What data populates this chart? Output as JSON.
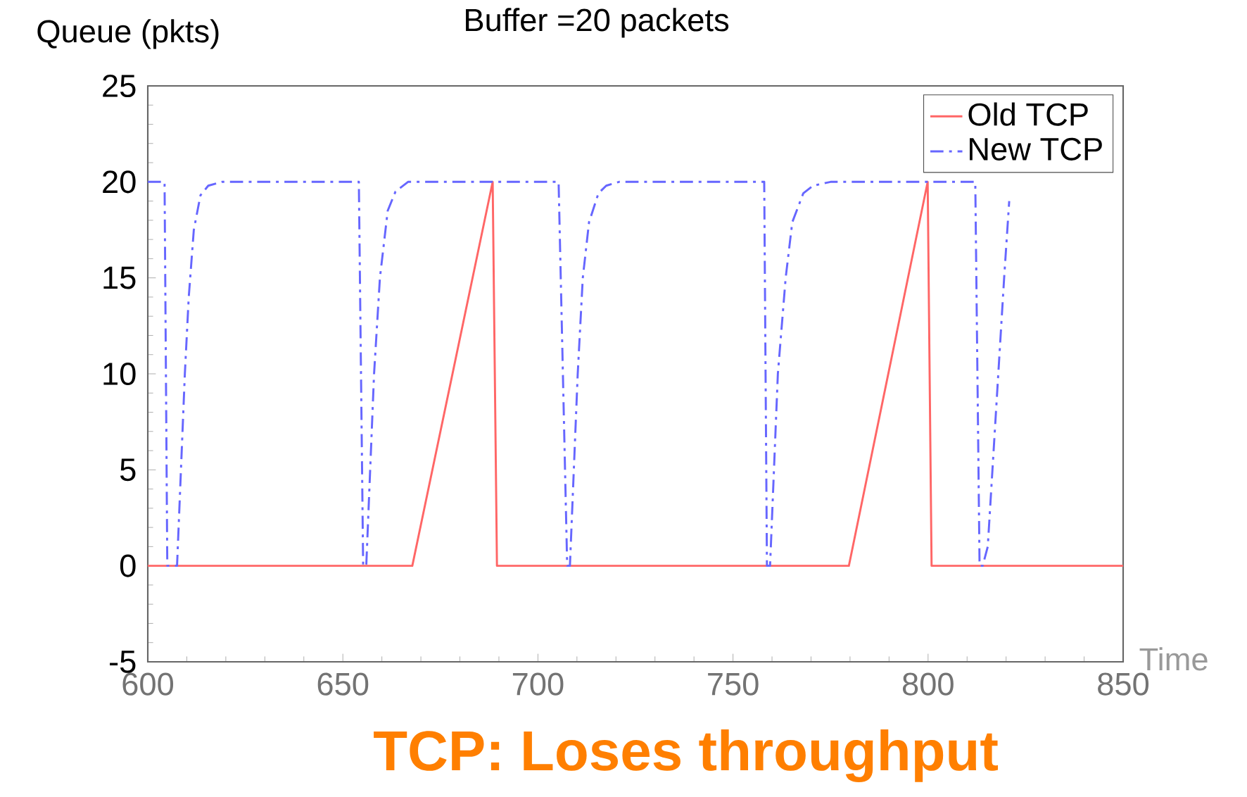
{
  "chart_data": {
    "type": "line",
    "title": "Buffer =20 packets",
    "ylabel": "Queue (pkts)",
    "xlabel": "Time",
    "xlim": [
      600,
      850
    ],
    "xticks": [
      600,
      650,
      700,
      750,
      800,
      850
    ],
    "ylim": [
      -5,
      25
    ],
    "yticks": [
      -5,
      0,
      5,
      10,
      15,
      20,
      25
    ],
    "legend": "top right",
    "marker": "none",
    "annotations": [
      "TCP: Loses throughput"
    ],
    "series": [
      {
        "name": "Old TCP",
        "color": "#ff6666",
        "line_style": "solid",
        "x": [
          600,
          667.8,
          688.4,
          689.5,
          779.7,
          799.9,
          800.9,
          850
        ],
        "values": [
          0,
          0,
          20,
          0,
          0,
          20,
          0,
          0
        ]
      },
      {
        "name": "New TCP",
        "color": "#6666ff",
        "line_style": "dashdot",
        "x": [
          600,
          604.3,
          605,
          607.5,
          608.5,
          609.5,
          610.5,
          611.8,
          613.5,
          615.5,
          619,
          654.1,
          655.2,
          656,
          657,
          658,
          659.5,
          661.5,
          663.5,
          666.7,
          705.3,
          707.5,
          708.2,
          709.2,
          710.2,
          711.5,
          713.1,
          715.5,
          717.5,
          720.8,
          758,
          758.7,
          759.5,
          760.5,
          761.5,
          763.5,
          765.2,
          768,
          770.5,
          775,
          812.1,
          813.2,
          814,
          815.3,
          816.5,
          818,
          819.5,
          820.8
        ],
        "values": [
          20,
          20,
          0,
          0,
          5,
          10,
          14,
          17.5,
          19.3,
          19.8,
          20,
          20,
          0,
          0,
          5,
          10,
          15,
          18.5,
          19.5,
          20,
          20,
          0,
          0,
          5,
          10,
          15,
          17.9,
          19.4,
          19.8,
          20,
          20,
          0,
          0,
          5,
          10,
          15,
          17.9,
          19.4,
          19.8,
          20,
          20,
          0,
          0,
          1,
          5,
          10,
          15,
          19
        ]
      }
    ]
  }
}
